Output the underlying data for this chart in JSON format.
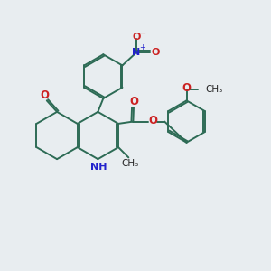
{
  "background_color": "#e8edf0",
  "bond_color": "#2d6b55",
  "nitrogen_color": "#2222cc",
  "oxygen_color": "#cc2222",
  "bond_lw": 1.4,
  "figsize": [
    3.0,
    3.0
  ],
  "dpi": 100,
  "xlim": [
    0,
    10
  ],
  "ylim": [
    0,
    10
  ]
}
